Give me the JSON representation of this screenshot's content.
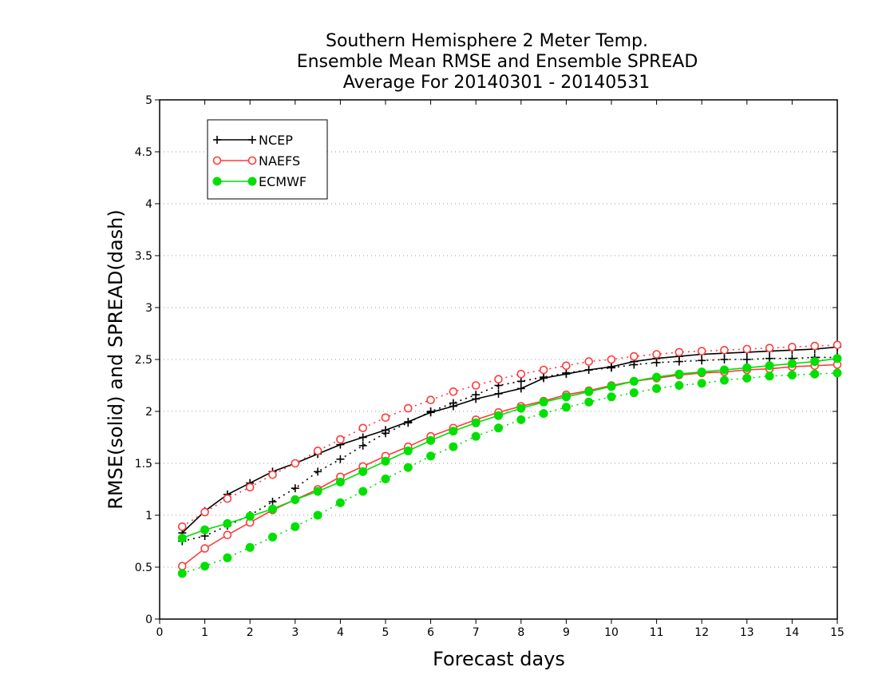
{
  "chart_data": {
    "type": "line",
    "title_lines": [
      "Southern Hemisphere 2 Meter Temp.",
      "Ensemble Mean RMSE and Ensemble SPREAD",
      "Average For 20140301 - 20140531"
    ],
    "xlabel": "Forecast days",
    "ylabel": "RMSE(solid) and SPREAD(dash)",
    "xlim": [
      0,
      15
    ],
    "ylim": [
      0,
      5
    ],
    "x_ticks": [
      "0",
      "1",
      "2",
      "3",
      "4",
      "5",
      "6",
      "7",
      "8",
      "9",
      "10",
      "11",
      "12",
      "13",
      "14",
      "15"
    ],
    "y_ticks": [
      "0",
      "0.5",
      "1",
      "1.5",
      "2",
      "2.5",
      "3",
      "3.5",
      "4",
      "4.5",
      "5"
    ],
    "grid": "horizontal dotted",
    "legend_position": "top-left",
    "x": [
      0.5,
      1,
      1.5,
      2,
      2.5,
      3,
      3.5,
      4,
      4.5,
      5,
      5.5,
      6,
      6.5,
      7,
      7.5,
      8,
      8.5,
      9,
      9.5,
      10,
      10.5,
      11,
      11.5,
      12,
      12.5,
      13,
      13.5,
      14,
      14.5,
      15
    ],
    "series": [
      {
        "name": "NCEP",
        "color": "#000000",
        "marker": "plus",
        "rmse": [
          0.83,
          1.04,
          1.2,
          1.31,
          1.42,
          1.5,
          1.59,
          1.68,
          1.75,
          1.82,
          1.9,
          1.99,
          2.05,
          2.12,
          2.17,
          2.22,
          2.32,
          2.36,
          2.4,
          2.43,
          2.48,
          2.51,
          2.53,
          2.55,
          2.56,
          2.57,
          2.58,
          2.59,
          2.6,
          2.62
        ],
        "spread": [
          0.75,
          0.8,
          0.9,
          1.0,
          1.13,
          1.26,
          1.42,
          1.54,
          1.67,
          1.79,
          1.89,
          2.0,
          2.08,
          2.16,
          2.25,
          2.29,
          2.33,
          2.37,
          2.4,
          2.42,
          2.45,
          2.47,
          2.48,
          2.49,
          2.5,
          2.5,
          2.51,
          2.51,
          2.52,
          2.52
        ]
      },
      {
        "name": "NAEFS",
        "color": "#ff3b3b",
        "marker": "open-circle",
        "rmse": [
          0.51,
          0.68,
          0.81,
          0.93,
          1.05,
          1.15,
          1.25,
          1.37,
          1.47,
          1.57,
          1.66,
          1.76,
          1.84,
          1.92,
          1.99,
          2.05,
          2.1,
          2.16,
          2.2,
          2.25,
          2.29,
          2.32,
          2.35,
          2.37,
          2.38,
          2.4,
          2.41,
          2.43,
          2.44,
          2.45
        ],
        "spread": [
          0.89,
          1.03,
          1.16,
          1.27,
          1.39,
          1.5,
          1.62,
          1.73,
          1.84,
          1.94,
          2.03,
          2.11,
          2.19,
          2.25,
          2.31,
          2.36,
          2.4,
          2.44,
          2.48,
          2.5,
          2.53,
          2.55,
          2.57,
          2.58,
          2.59,
          2.6,
          2.61,
          2.62,
          2.63,
          2.64
        ]
      },
      {
        "name": "ECMWF",
        "color": "#00e000",
        "marker": "filled-circle",
        "rmse": [
          0.78,
          0.86,
          0.92,
          0.99,
          1.06,
          1.15,
          1.23,
          1.32,
          1.42,
          1.52,
          1.62,
          1.72,
          1.81,
          1.89,
          1.96,
          2.03,
          2.09,
          2.14,
          2.19,
          2.24,
          2.29,
          2.33,
          2.36,
          2.38,
          2.4,
          2.42,
          2.44,
          2.46,
          2.48,
          2.51
        ],
        "spread": [
          0.44,
          0.51,
          0.59,
          0.69,
          0.79,
          0.89,
          1.0,
          1.12,
          1.23,
          1.35,
          1.46,
          1.57,
          1.66,
          1.76,
          1.84,
          1.92,
          1.98,
          2.04,
          2.09,
          2.14,
          2.18,
          2.22,
          2.25,
          2.27,
          2.3,
          2.32,
          2.34,
          2.35,
          2.36,
          2.37
        ]
      }
    ]
  }
}
